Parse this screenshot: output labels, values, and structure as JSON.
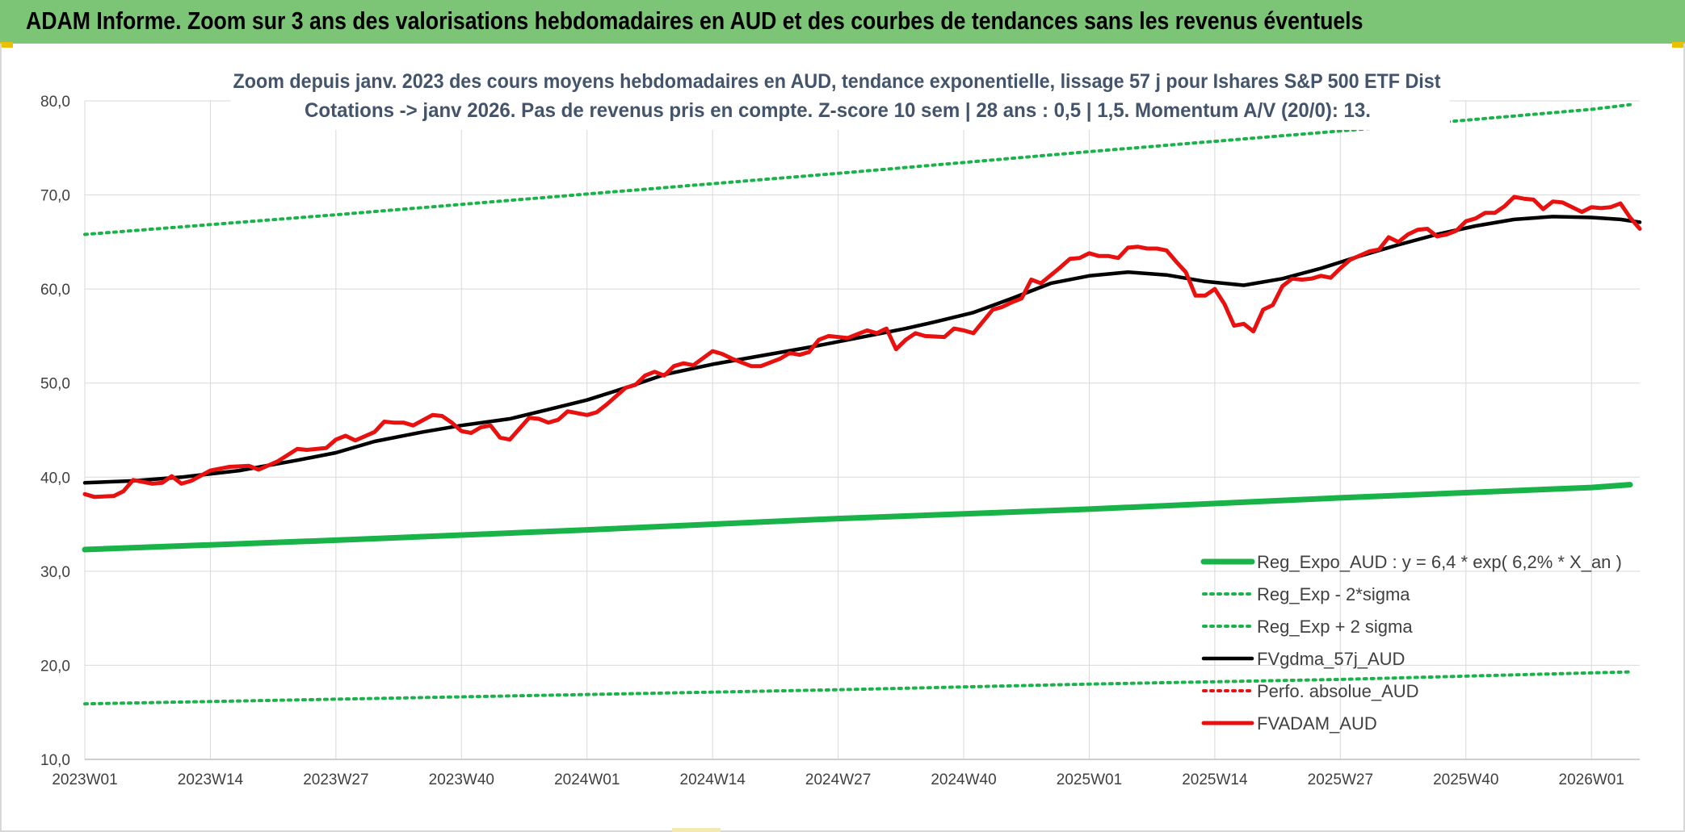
{
  "header": {
    "title": "ADAM Informe. Zoom sur 3 ans des valorisations hebdomadaires en AUD et des courbes de tendances sans les revenus éventuels"
  },
  "colors": {
    "banner": "#7cc576",
    "reg": "#19b34a",
    "sigma": "#19b34a",
    "gdma": "#000000",
    "adam": "#e8110f",
    "perfo": "#e8110f",
    "grid": "#d9d9d9"
  },
  "chart_data": {
    "type": "line",
    "title": "Zoom depuis janv. 2023 des cours moyens hebdomadaires en AUD, tendance exponentielle, lissage 57 j pour Ishares S&P 500 ETF Dist",
    "subtitle": "Cotations -> janv 2026. Pas de revenus pris en compte. Z-score 10 sem | 28 ans : 0,5 | 1,5. Momentum A/V (20/0): 13.",
    "xlabel": "",
    "ylabel": "",
    "ylim": [
      10,
      80
    ],
    "yticks": [
      "10,0",
      "20,0",
      "30,0",
      "40,0",
      "50,0",
      "60,0",
      "70,0",
      "80,0"
    ],
    "x_tick_labels": [
      "2023W01",
      "2023W14",
      "2023W27",
      "2023W40",
      "2024W01",
      "2024W14",
      "2024W27",
      "2024W40",
      "2025W01",
      "2025W14",
      "2025W27",
      "2025W40",
      "2026W01"
    ],
    "x_tick_index": [
      0,
      13,
      26,
      39,
      52,
      65,
      78,
      91,
      104,
      117,
      130,
      143,
      156
    ],
    "n_weeks": 161,
    "grid": true,
    "legend_position": "bottom-right",
    "series": [
      {
        "name": "Reg_Expo_AUD : y = 6,4 * exp( 6,2% *  X_an )",
        "style": "solid-thick",
        "color": "#19b34a",
        "points": [
          [
            0,
            32.3
          ],
          [
            26,
            33.3
          ],
          [
            52,
            34.4
          ],
          [
            78,
            35.6
          ],
          [
            104,
            36.6
          ],
          [
            130,
            37.8
          ],
          [
            156,
            38.9
          ],
          [
            160,
            39.2
          ]
        ]
      },
      {
        "name": "Reg_Exp - 2*sigma",
        "style": "dotted",
        "color": "#19b34a",
        "points": [
          [
            0,
            15.9
          ],
          [
            26,
            16.4
          ],
          [
            52,
            16.9
          ],
          [
            78,
            17.4
          ],
          [
            104,
            18.0
          ],
          [
            130,
            18.5
          ],
          [
            156,
            19.2
          ],
          [
            160,
            19.3
          ]
        ]
      },
      {
        "name": "Reg_Exp + 2 sigma",
        "style": "dotted",
        "color": "#19b34a",
        "points": [
          [
            0,
            65.8
          ],
          [
            26,
            67.9
          ],
          [
            52,
            70.1
          ],
          [
            78,
            72.3
          ],
          [
            104,
            74.6
          ],
          [
            130,
            76.8
          ],
          [
            156,
            79.1
          ],
          [
            160,
            79.6
          ]
        ]
      },
      {
        "name": "FVgdma_57j_AUD",
        "style": "solid",
        "color": "#000000",
        "points": [
          [
            0,
            39.4
          ],
          [
            5,
            39.6
          ],
          [
            10,
            40.0
          ],
          [
            16,
            40.7
          ],
          [
            22,
            41.8
          ],
          [
            26,
            42.6
          ],
          [
            30,
            43.8
          ],
          [
            35,
            44.8
          ],
          [
            39,
            45.5
          ],
          [
            44,
            46.2
          ],
          [
            48,
            47.2
          ],
          [
            52,
            48.2
          ],
          [
            56,
            49.5
          ],
          [
            60,
            50.9
          ],
          [
            65,
            52.0
          ],
          [
            70,
            52.9
          ],
          [
            75,
            53.8
          ],
          [
            80,
            54.8
          ],
          [
            85,
            55.8
          ],
          [
            88,
            56.5
          ],
          [
            92,
            57.5
          ],
          [
            96,
            59.0
          ],
          [
            100,
            60.6
          ],
          [
            104,
            61.4
          ],
          [
            108,
            61.8
          ],
          [
            112,
            61.5
          ],
          [
            116,
            60.8
          ],
          [
            120,
            60.4
          ],
          [
            124,
            61.1
          ],
          [
            128,
            62.2
          ],
          [
            132,
            63.5
          ],
          [
            136,
            64.7
          ],
          [
            140,
            65.8
          ],
          [
            144,
            66.7
          ],
          [
            148,
            67.4
          ],
          [
            152,
            67.7
          ],
          [
            156,
            67.6
          ],
          [
            159,
            67.4
          ],
          [
            161,
            67.1
          ]
        ]
      },
      {
        "name": "Perfo. absolue_AUD",
        "style": "dotted",
        "color": "#e8110f",
        "points": []
      },
      {
        "name": "FVADAM_AUD",
        "style": "solid-thick",
        "color": "#e8110f",
        "points": [
          [
            0,
            38.2
          ],
          [
            1,
            37.9
          ],
          [
            3,
            38.0
          ],
          [
            4,
            38.5
          ],
          [
            5,
            39.7
          ],
          [
            7,
            39.3
          ],
          [
            8,
            39.4
          ],
          [
            9,
            40.1
          ],
          [
            10,
            39.3
          ],
          [
            11,
            39.6
          ],
          [
            13,
            40.7
          ],
          [
            15,
            41.1
          ],
          [
            17,
            41.2
          ],
          [
            18,
            40.8
          ],
          [
            20,
            41.7
          ],
          [
            22,
            43.0
          ],
          [
            23,
            42.9
          ],
          [
            25,
            43.1
          ],
          [
            26,
            44.0
          ],
          [
            27,
            44.4
          ],
          [
            28,
            43.9
          ],
          [
            30,
            44.8
          ],
          [
            31,
            45.9
          ],
          [
            32,
            45.8
          ],
          [
            33,
            45.8
          ],
          [
            34,
            45.5
          ],
          [
            36,
            46.6
          ],
          [
            37,
            46.5
          ],
          [
            38,
            45.8
          ],
          [
            39,
            44.9
          ],
          [
            40,
            44.7
          ],
          [
            41,
            45.3
          ],
          [
            42,
            45.5
          ],
          [
            43,
            44.2
          ],
          [
            44,
            44.0
          ],
          [
            46,
            46.3
          ],
          [
            47,
            46.2
          ],
          [
            48,
            45.8
          ],
          [
            49,
            46.1
          ],
          [
            50,
            47.0
          ],
          [
            52,
            46.6
          ],
          [
            53,
            46.9
          ],
          [
            54,
            47.7
          ],
          [
            56,
            49.5
          ],
          [
            57,
            49.8
          ],
          [
            58,
            50.8
          ],
          [
            59,
            51.2
          ],
          [
            60,
            50.8
          ],
          [
            61,
            51.8
          ],
          [
            62,
            52.1
          ],
          [
            63,
            51.9
          ],
          [
            65,
            53.4
          ],
          [
            66,
            53.1
          ],
          [
            67,
            52.6
          ],
          [
            68,
            52.2
          ],
          [
            69,
            51.8
          ],
          [
            70,
            51.8
          ],
          [
            72,
            52.6
          ],
          [
            73,
            53.2
          ],
          [
            74,
            53.0
          ],
          [
            75,
            53.3
          ],
          [
            76,
            54.6
          ],
          [
            77,
            55.0
          ],
          [
            79,
            54.8
          ],
          [
            80,
            55.2
          ],
          [
            81,
            55.6
          ],
          [
            82,
            55.3
          ],
          [
            83,
            55.8
          ],
          [
            84,
            53.6
          ],
          [
            85,
            54.6
          ],
          [
            86,
            55.3
          ],
          [
            87,
            55.0
          ],
          [
            89,
            54.9
          ],
          [
            90,
            55.8
          ],
          [
            91,
            55.6
          ],
          [
            92,
            55.3
          ],
          [
            94,
            57.8
          ],
          [
            95,
            58.1
          ],
          [
            96,
            58.6
          ],
          [
            97,
            59.0
          ],
          [
            98,
            61.0
          ],
          [
            99,
            60.6
          ],
          [
            101,
            62.3
          ],
          [
            102,
            63.2
          ],
          [
            103,
            63.3
          ],
          [
            104,
            63.8
          ],
          [
            105,
            63.5
          ],
          [
            106,
            63.5
          ],
          [
            107,
            63.3
          ],
          [
            108,
            64.4
          ],
          [
            109,
            64.5
          ],
          [
            110,
            64.3
          ],
          [
            111,
            64.3
          ],
          [
            112,
            64.1
          ],
          [
            113,
            62.9
          ],
          [
            114,
            61.8
          ],
          [
            115,
            59.3
          ],
          [
            116,
            59.3
          ],
          [
            117,
            60.0
          ],
          [
            118,
            58.4
          ],
          [
            119,
            56.1
          ],
          [
            120,
            56.3
          ],
          [
            121,
            55.5
          ],
          [
            122,
            57.8
          ],
          [
            123,
            58.3
          ],
          [
            124,
            60.3
          ],
          [
            125,
            61.1
          ],
          [
            126,
            61.0
          ],
          [
            127,
            61.1
          ],
          [
            128,
            61.4
          ],
          [
            129,
            61.2
          ],
          [
            130,
            62.2
          ],
          [
            131,
            63.1
          ],
          [
            133,
            64.0
          ],
          [
            134,
            64.2
          ],
          [
            135,
            65.5
          ],
          [
            136,
            65.0
          ],
          [
            137,
            65.8
          ],
          [
            138,
            66.3
          ],
          [
            139,
            66.4
          ],
          [
            140,
            65.6
          ],
          [
            141,
            65.8
          ],
          [
            142,
            66.2
          ],
          [
            143,
            67.2
          ],
          [
            144,
            67.5
          ],
          [
            145,
            68.1
          ],
          [
            146,
            68.1
          ],
          [
            147,
            68.8
          ],
          [
            148,
            69.8
          ],
          [
            149,
            69.6
          ],
          [
            150,
            69.5
          ],
          [
            151,
            68.5
          ],
          [
            152,
            69.3
          ],
          [
            153,
            69.2
          ],
          [
            154,
            68.7
          ],
          [
            155,
            68.2
          ],
          [
            156,
            68.7
          ],
          [
            157,
            68.6
          ],
          [
            158,
            68.7
          ],
          [
            159,
            69.1
          ],
          [
            160,
            67.6
          ],
          [
            161,
            66.4
          ]
        ]
      }
    ]
  }
}
